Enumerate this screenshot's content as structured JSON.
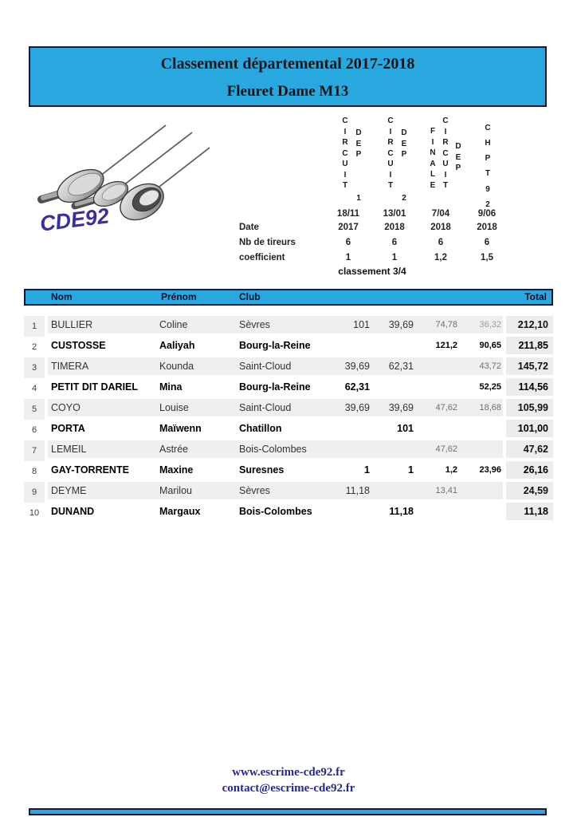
{
  "title": {
    "line1": "Classement départemental 2017-2018",
    "line2": "Fleuret Dame M13"
  },
  "logo_text": "CDE92",
  "colors": {
    "accent_cyan": "#29a8e0",
    "border_dark": "#16163a",
    "rank_grey": "#a8a8a8",
    "stripe_grey": "#efefef",
    "total_grey": "#ececec",
    "footer_navy": "#29259b",
    "logo_indigo": "#3b2f9d"
  },
  "events": {
    "row_labels": {
      "date": "Date",
      "tireurs": "Nb de tireurs",
      "coefficient": "coefficient"
    },
    "note": "classement 3/4",
    "columns": [
      {
        "vertical_parts": [
          "CIRCUIT",
          "DEP",
          "1"
        ],
        "date_line1": "18/11",
        "date_line2": "2017",
        "tireurs": "6",
        "coefficient": "1"
      },
      {
        "vertical_parts": [
          "CIRCUIT",
          "DEP",
          "2"
        ],
        "date_line1": "13/01",
        "date_line2": "2018",
        "tireurs": "6",
        "coefficient": "1"
      },
      {
        "vertical_parts": [
          "FINALE",
          "CIRCUIT",
          "DEP"
        ],
        "date_line1": "7/04",
        "date_line2": "2018",
        "tireurs": "6",
        "coefficient": "1,2"
      },
      {
        "vertical_parts": [
          "CHPT",
          "92"
        ],
        "date_line1": "9/06",
        "date_line2": "2018",
        "tireurs": "6",
        "coefficient": "1,5"
      }
    ]
  },
  "table": {
    "headers": {
      "nom": "Nom",
      "prenom": "Prénom",
      "club": "Club",
      "total": "Total"
    },
    "rows": [
      {
        "rank": "1",
        "nom": "BULLIER",
        "prenom": "Coline",
        "club": "Sèvres",
        "v1": "101",
        "v2": "39,69",
        "v3": "74,78",
        "v4": "36,32",
        "total": "212,10",
        "bold": false,
        "v4_muted": true
      },
      {
        "rank": "2",
        "nom": "CUSTOSSE",
        "prenom": "Aaliyah",
        "club": "Bourg-la-Reine",
        "v1": "",
        "v2": "",
        "v3": "121,2",
        "v4": "90,65",
        "total": "211,85",
        "bold": true
      },
      {
        "rank": "3",
        "nom": "TIMERA",
        "prenom": "Kounda",
        "club": "Saint-Cloud",
        "v1": "39,69",
        "v2": "62,31",
        "v3": "",
        "v4": "43,72",
        "total": "145,72",
        "bold": false
      },
      {
        "rank": "4",
        "nom": "PETIT DIT DARIEL",
        "prenom": "Mina",
        "club": "Bourg-la-Reine",
        "v1": "62,31",
        "v2": "",
        "v3": "",
        "v4": "52,25",
        "total": "114,56",
        "bold": true
      },
      {
        "rank": "5",
        "nom": "COYO",
        "prenom": "Louise",
        "club": "Saint-Cloud",
        "v1": "39,69",
        "v2": "39,69",
        "v3": "47,62",
        "v4": "18,68",
        "total": "105,99",
        "bold": false
      },
      {
        "rank": "6",
        "nom": "PORTA",
        "prenom": "Maïwenn",
        "club": "Chatillon",
        "v1": "",
        "v2": "101",
        "v3": "",
        "v4": "",
        "total": "101,00",
        "bold": true
      },
      {
        "rank": "7",
        "nom": "LEMEIL",
        "prenom": "Astrée",
        "club": "Bois-Colombes",
        "v1": "",
        "v2": "",
        "v3": "47,62",
        "v4": "",
        "total": "47,62",
        "bold": false
      },
      {
        "rank": "8",
        "nom": "GAY-TORRENTE",
        "prenom": "Maxine",
        "club": "Suresnes",
        "v1": "1",
        "v2": "1",
        "v3": "1,2",
        "v4": "23,96",
        "total": "26,16",
        "bold": true
      },
      {
        "rank": "9",
        "nom": "DEYME",
        "prenom": "Marilou",
        "club": "Sèvres",
        "v1": "11,18",
        "v2": "",
        "v3": "13,41",
        "v4": "",
        "total": "24,59",
        "bold": false
      },
      {
        "rank": "10",
        "nom": "DUNAND",
        "prenom": "Margaux",
        "club": "Bois-Colombes",
        "v1": "",
        "v2": "11,18",
        "v3": "",
        "v4": "",
        "total": "11,18",
        "bold": true
      }
    ]
  },
  "footer": {
    "website": "www.escrime-cde92.fr",
    "email": "contact@escrime-cde92.fr"
  }
}
